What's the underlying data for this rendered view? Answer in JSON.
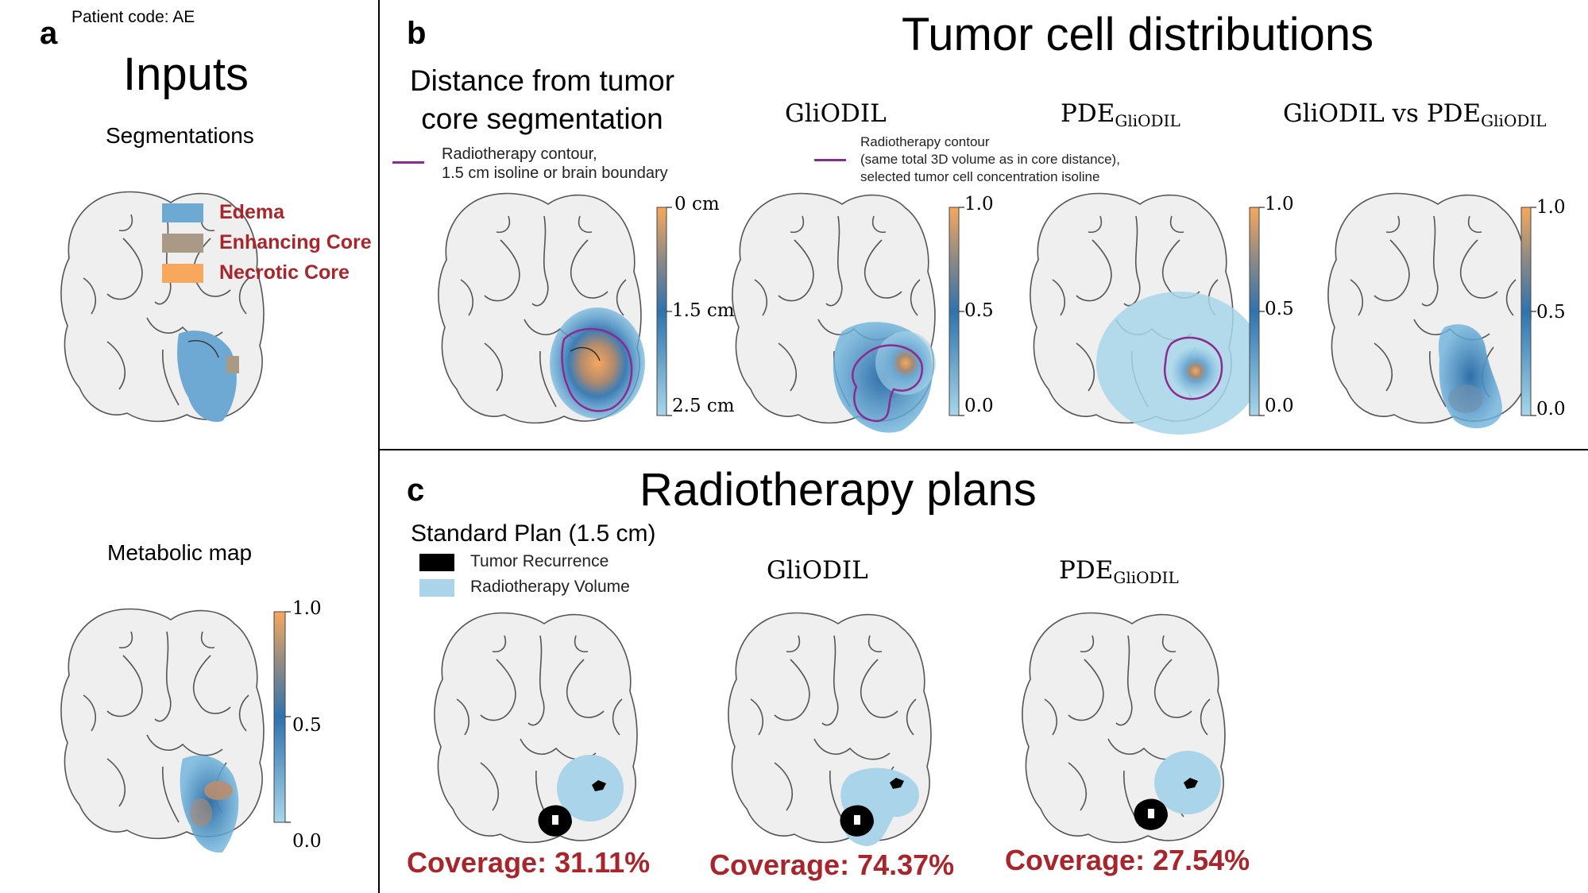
{
  "patient_code": "Patient code: AE",
  "panel_a": {
    "letter": "a",
    "title": "Inputs",
    "segmentations_label": "Segmentations",
    "legend": [
      {
        "label": "Edema",
        "color": "#6ea9d4"
      },
      {
        "label": "Enhancing Core",
        "color": "#a89a86"
      },
      {
        "label": "Necrotic Core",
        "color": "#f7a85c"
      }
    ],
    "metabolic_label": "Metabolic map",
    "metabolic_colorbar": {
      "ticks": [
        "1.0",
        "0.5",
        "0.0"
      ]
    }
  },
  "panel_b": {
    "letter": "b",
    "title": "Tumor cell distributions",
    "distance_title": "Distance from tumor core segmentation",
    "legend1": {
      "line1": "Radiotherapy contour,",
      "line2": "1.5 cm isoline or brain boundary"
    },
    "legend2": {
      "line1": "Radiotherapy contour",
      "line2": "(same total 3D volume as in core distance),",
      "line3": "selected tumor cell concentration isoline"
    },
    "maps": [
      {
        "title_main": "",
        "title_sub": "",
        "ticks": [
          "0 cm",
          "1.5 cm",
          "2.5 cm"
        ]
      },
      {
        "title_main": "GliODIL",
        "title_sub": "",
        "ticks": [
          "1.0",
          "0.5",
          "0.0"
        ]
      },
      {
        "title_main": "PDE",
        "title_sub": "GliODIL",
        "ticks": [
          "1.0",
          "0.5",
          "0.0"
        ]
      },
      {
        "title_main": "GliODIL vs PDE",
        "title_sub": "GliODIL",
        "ticks": [
          "1.0",
          "0.5",
          "0.0"
        ]
      }
    ],
    "contour_color": "#8b2a8f"
  },
  "panel_c": {
    "letter": "c",
    "title": "Radiotherapy plans",
    "plans": [
      {
        "title_main": "Standard Plan (1.5 cm)",
        "title_sub": "",
        "coverage": "Coverage: 31.11%"
      },
      {
        "title_main": "GliODIL",
        "title_sub": "",
        "coverage": "Coverage: 74.37%"
      },
      {
        "title_main": "PDE",
        "title_sub": "GliODIL",
        "coverage": "Coverage: 27.54%"
      }
    ],
    "legend": [
      {
        "label": "Tumor Recurrence",
        "color": "#000000"
      },
      {
        "label": "Radiotherapy Volume",
        "color": "#a9d4ea"
      }
    ]
  }
}
